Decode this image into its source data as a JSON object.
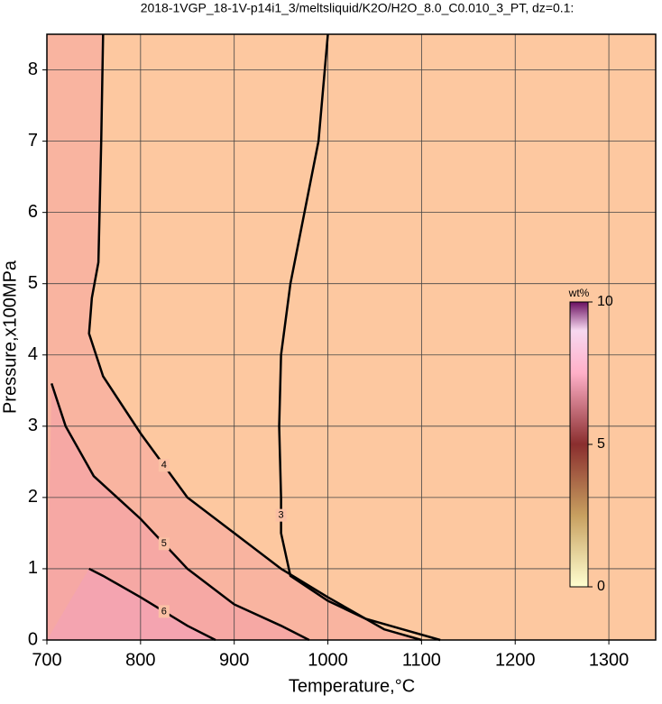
{
  "chart_data": {
    "type": "contour",
    "title": "2018-1VGP_18-1V-p14i1_3/meltsliquid/K2O/H2O_8.0_C0.010_3_PT, dz=0.1:",
    "xlabel": "Temperature,°C",
    "ylabel": "Pressure,x100MPa",
    "xlim": [
      700,
      1350
    ],
    "ylim": [
      0,
      8.5
    ],
    "xticks": [
      700,
      800,
      900,
      1000,
      1100,
      1200,
      1300
    ],
    "yticks": [
      0,
      1,
      2,
      3,
      4,
      5,
      6,
      7,
      8
    ],
    "grid": true,
    "series": [
      {
        "level": 3,
        "x": [
          1120,
          1080,
          1040,
          1000,
          960,
          950,
          950,
          948,
          950,
          960,
          975,
          990,
          1000
        ],
        "y": [
          0,
          0.15,
          0.3,
          0.55,
          0.9,
          1.5,
          2,
          3,
          4,
          5,
          6,
          7,
          8.5
        ]
      },
      {
        "level": 4,
        "x": [
          1100,
          1060,
          1000,
          950,
          900,
          850,
          800,
          760,
          745,
          748,
          755,
          758,
          760
        ],
        "y": [
          0,
          0.15,
          0.6,
          1.0,
          1.5,
          2.0,
          2.9,
          3.7,
          4.3,
          4.8,
          5.3,
          7,
          8.5
        ]
      },
      {
        "level": 5,
        "x": [
          980,
          950,
          900,
          850,
          800,
          750,
          720,
          705
        ],
        "y": [
          0,
          0.2,
          0.5,
          1.0,
          1.7,
          2.3,
          3.0,
          3.6
        ]
      },
      {
        "level": 6,
        "x": [
          880,
          850,
          800,
          760,
          745
        ],
        "y": [
          0,
          0.2,
          0.6,
          0.9,
          1.0
        ]
      }
    ],
    "colorbar": {
      "label": "wt%",
      "lim": [
        0,
        10
      ],
      "ticks": [
        0,
        5,
        10
      ]
    }
  }
}
